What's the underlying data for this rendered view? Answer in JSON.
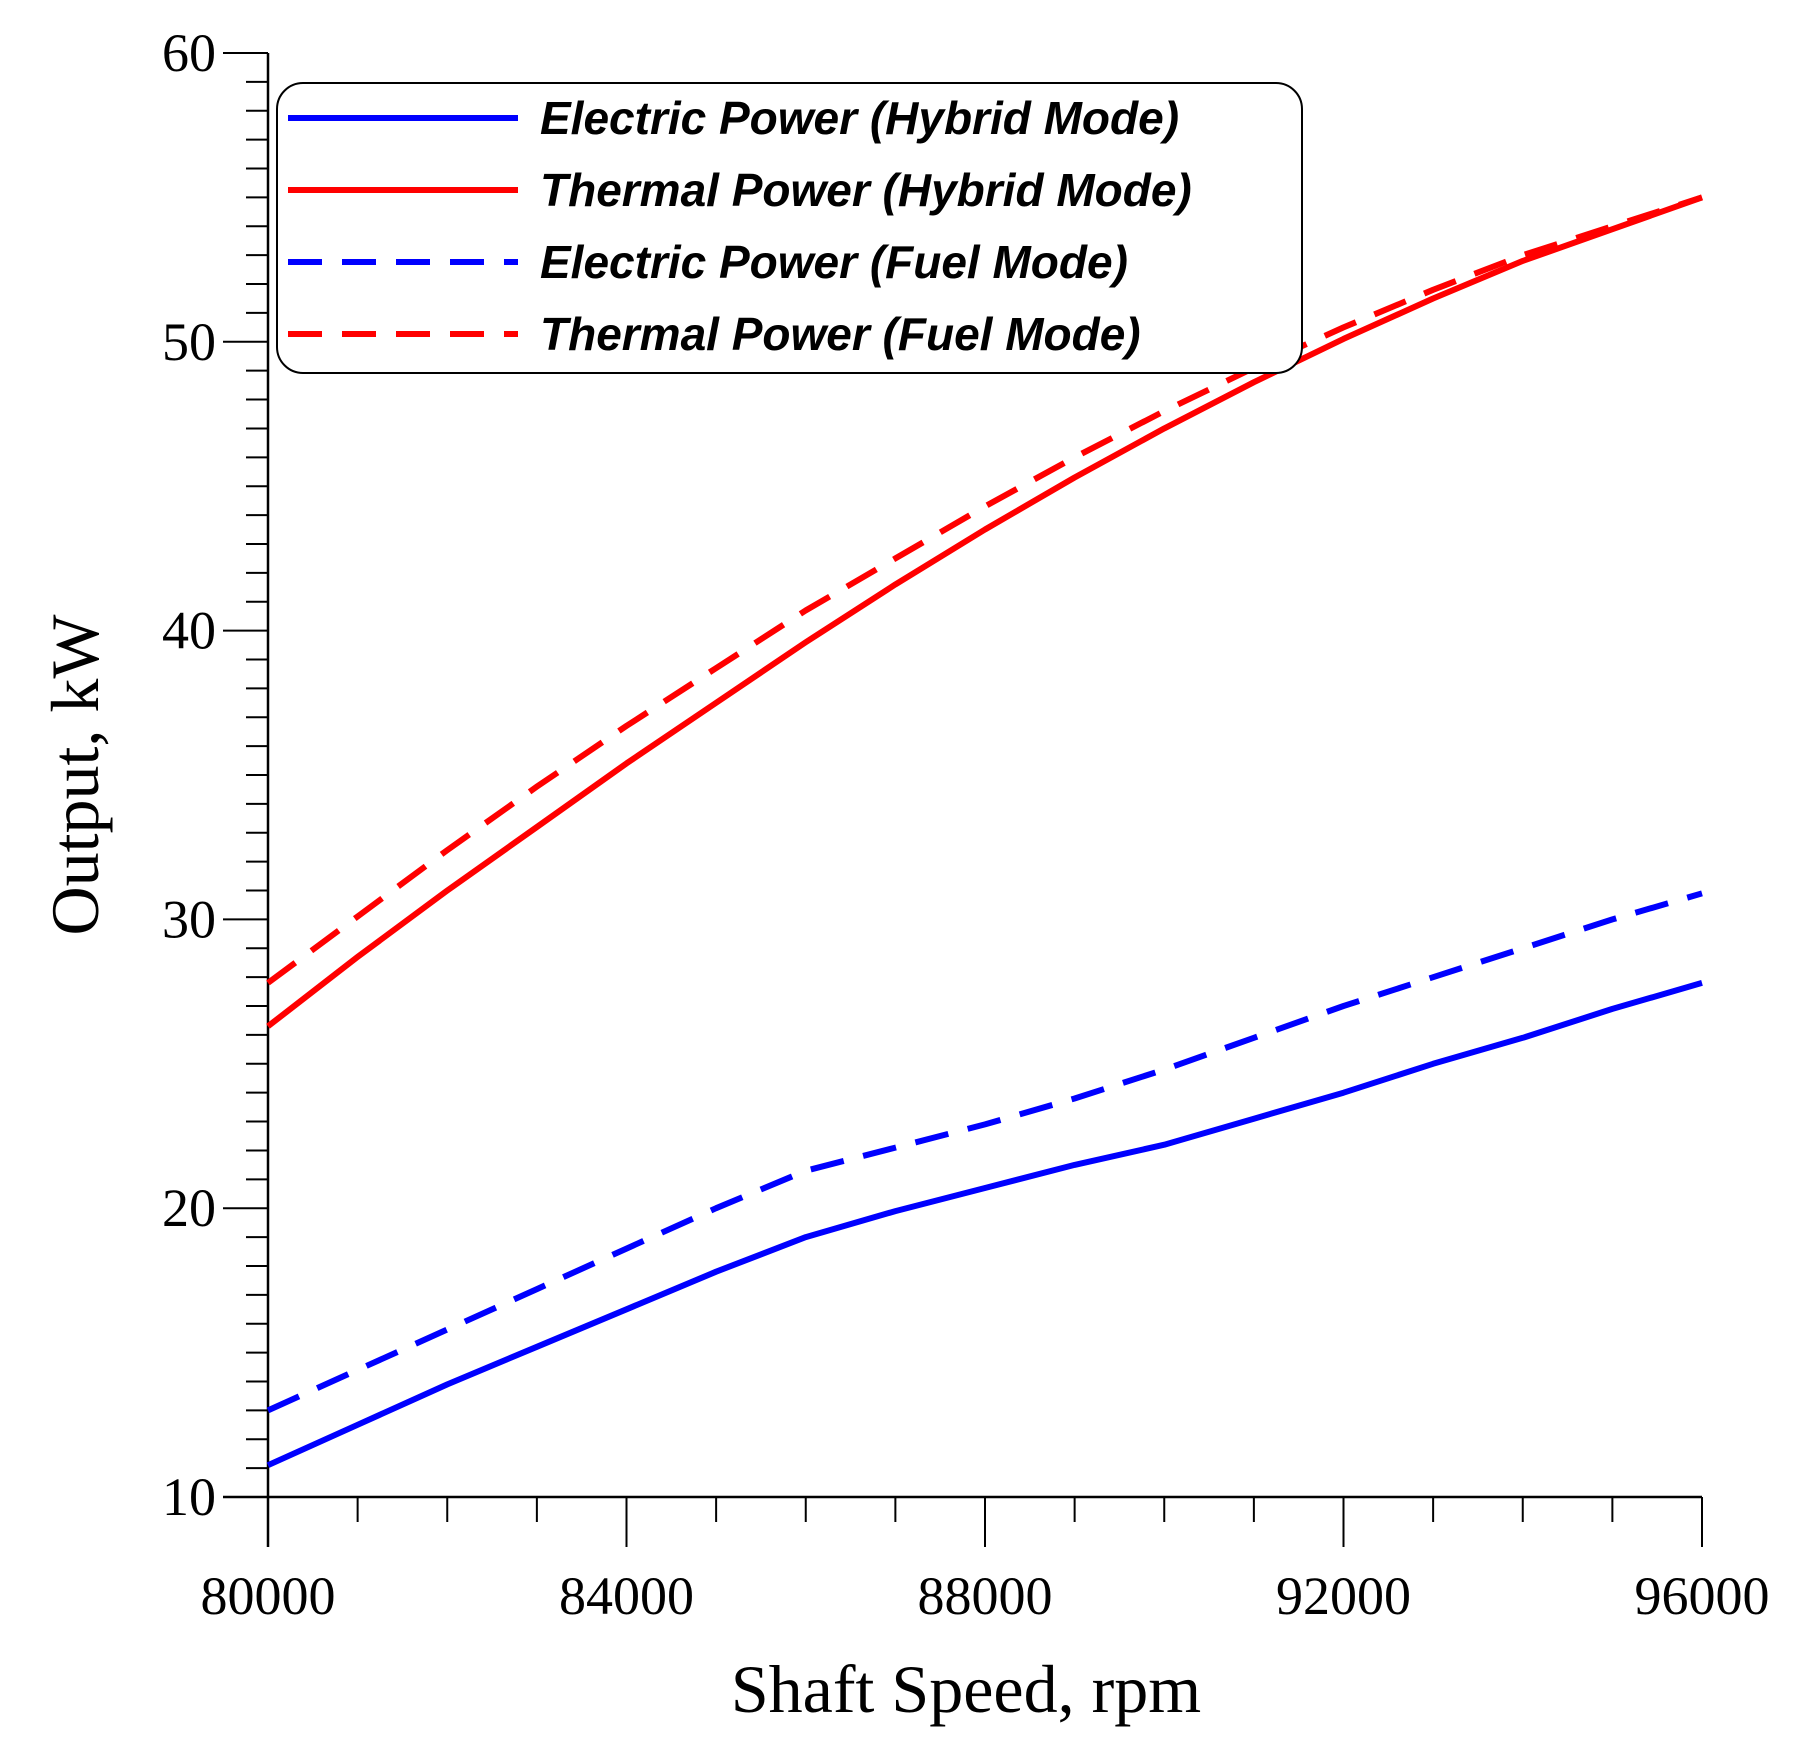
{
  "chart_data": {
    "type": "line",
    "title": "",
    "xlabel": "Shaft Speed, rpm",
    "ylabel": "Output, kW",
    "xlim": [
      80000,
      96000
    ],
    "ylim": [
      10,
      60
    ],
    "x_ticks": [
      80000,
      84000,
      88000,
      92000,
      96000
    ],
    "y_ticks": [
      10,
      20,
      30,
      40,
      50,
      60
    ],
    "grid": false,
    "legend_position": "top-left",
    "series": [
      {
        "name": "Electric Power (Hybrid Mode)",
        "color": "#0000ff",
        "dash": "solid",
        "x": [
          80000,
          81000,
          82000,
          83000,
          84000,
          85000,
          86000,
          87000,
          88000,
          89000,
          90000,
          91000,
          92000,
          93000,
          94000,
          95000,
          96000
        ],
        "y": [
          11.1,
          12.5,
          13.9,
          15.2,
          16.5,
          17.8,
          19.0,
          19.9,
          20.7,
          21.5,
          22.2,
          23.1,
          24.0,
          25.0,
          25.9,
          26.9,
          27.8
        ]
      },
      {
        "name": "Thermal Power (Hybrid Mode)",
        "color": "#ff0000",
        "dash": "solid",
        "x": [
          80000,
          81000,
          82000,
          83000,
          84000,
          85000,
          86000,
          87000,
          88000,
          89000,
          90000,
          91000,
          92000,
          93000,
          94000,
          95000,
          96000
        ],
        "y": [
          26.3,
          28.7,
          31.0,
          33.2,
          35.4,
          37.5,
          39.6,
          41.6,
          43.5,
          45.3,
          47.0,
          48.6,
          50.1,
          51.5,
          52.8,
          53.9,
          55.0
        ]
      },
      {
        "name": "Electric Power (Fuel Mode)",
        "color": "#0000ff",
        "dash": "dashed",
        "x": [
          80000,
          81000,
          82000,
          83000,
          84000,
          85000,
          86000,
          87000,
          88000,
          89000,
          90000,
          91000,
          92000,
          93000,
          94000,
          95000,
          96000
        ],
        "y": [
          13.0,
          14.4,
          15.8,
          17.2,
          18.6,
          20.0,
          21.3,
          22.1,
          22.9,
          23.8,
          24.8,
          25.9,
          27.0,
          28.0,
          29.0,
          30.0,
          30.9
        ]
      },
      {
        "name": "Thermal Power (Fuel Mode)",
        "color": "#ff0000",
        "dash": "dashed",
        "x": [
          80000,
          81000,
          82000,
          83000,
          84000,
          85000,
          86000,
          87000,
          88000,
          89000,
          90000,
          91000,
          92000,
          93000,
          94000,
          95000,
          96000
        ],
        "y": [
          27.8,
          30.1,
          32.4,
          34.6,
          36.7,
          38.7,
          40.7,
          42.5,
          44.3,
          46.0,
          47.6,
          49.1,
          50.5,
          51.8,
          53.0,
          54.0,
          55.0
        ]
      }
    ]
  }
}
